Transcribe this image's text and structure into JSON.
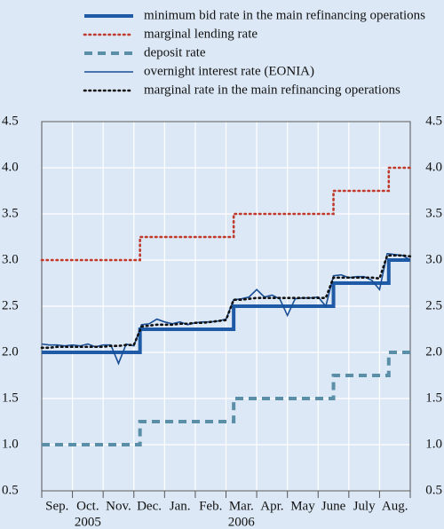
{
  "chart_data": {
    "type": "line",
    "categories": [
      "Sep.",
      "Oct.",
      "Nov.",
      "Dec.",
      "Jan.",
      "Feb.",
      "Mar.",
      "Apr.",
      "May",
      "June",
      "July",
      "Aug."
    ],
    "years": [
      "2005",
      "2006"
    ],
    "xlim": [
      0,
      12
    ],
    "ylim": [
      0.5,
      4.5
    ],
    "yticks": [
      0.5,
      {
        "value": 1.0,
        "label": "1.0"
      },
      1.5,
      {
        "value": 2.0,
        "label": "2.0"
      },
      2.5,
      {
        "value": 3.0,
        "label": "3.0"
      },
      3.5,
      {
        "value": 4.0,
        "label": "4.0"
      },
      4.5
    ],
    "grid": true,
    "x": [
      0,
      0.25,
      0.5,
      0.75,
      1,
      1.25,
      1.5,
      1.75,
      2,
      2.25,
      2.5,
      2.75,
      3,
      3.25,
      3.5,
      3.75,
      4,
      4.25,
      4.5,
      4.75,
      5,
      5.25,
      5.5,
      5.75,
      6,
      6.25,
      6.5,
      6.75,
      7,
      7.25,
      7.5,
      7.75,
      8,
      8.25,
      8.5,
      8.75,
      9,
      9.25,
      9.5,
      9.75,
      10,
      10.25,
      10.5,
      10.75,
      11,
      11.25,
      11.5,
      11.75,
      12
    ],
    "series": [
      {
        "name": "minimum bid rate in the main refinancing operations",
        "color": "#1f5aa6",
        "style": "thick",
        "step": true,
        "x": [
          0,
          3.2,
          6.25,
          9.5,
          11.3,
          12
        ],
        "values": [
          2.0,
          2.25,
          2.5,
          2.75,
          3.0,
          3.0
        ]
      },
      {
        "name": "marginal lending rate",
        "color": "#c0392b",
        "style": "dotted",
        "step": true,
        "x": [
          0,
          3.2,
          6.25,
          9.5,
          11.3,
          12
        ],
        "values": [
          3.0,
          3.25,
          3.5,
          3.75,
          4.0,
          4.0
        ]
      },
      {
        "name": "deposit rate",
        "color": "#5b8fa8",
        "style": "dashed",
        "step": true,
        "x": [
          0,
          3.2,
          6.25,
          9.5,
          11.3,
          12
        ],
        "values": [
          1.0,
          1.25,
          1.5,
          1.75,
          2.0,
          2.0
        ]
      },
      {
        "name": "overnight interest rate (EONIA)",
        "color": "#1a4e96",
        "style": "thin",
        "values": [
          2.09,
          2.08,
          2.08,
          2.07,
          2.08,
          2.07,
          2.09,
          2.06,
          2.08,
          2.08,
          1.88,
          2.09,
          2.07,
          2.3,
          2.31,
          2.36,
          2.33,
          2.31,
          2.33,
          2.3,
          2.32,
          2.33,
          2.33,
          2.34,
          2.36,
          2.57,
          2.58,
          2.6,
          2.68,
          2.6,
          2.62,
          2.58,
          2.4,
          2.58,
          2.59,
          2.59,
          2.6,
          2.5,
          2.83,
          2.84,
          2.81,
          2.82,
          2.82,
          2.78,
          2.68,
          3.07,
          3.06,
          3.05,
          3.0
        ]
      },
      {
        "name": "marginal rate in the main refinancing operations",
        "color": "#111111",
        "style": "dotted",
        "values": [
          2.05,
          2.05,
          2.06,
          2.06,
          2.06,
          2.06,
          2.06,
          2.06,
          2.06,
          2.07,
          2.07,
          2.08,
          2.08,
          2.28,
          2.29,
          2.3,
          2.3,
          2.3,
          2.31,
          2.31,
          2.32,
          2.32,
          2.33,
          2.34,
          2.35,
          2.57,
          2.57,
          2.58,
          2.59,
          2.59,
          2.59,
          2.59,
          2.59,
          2.59,
          2.59,
          2.59,
          2.59,
          2.59,
          2.81,
          2.81,
          2.81,
          2.81,
          2.81,
          2.81,
          2.8,
          3.05,
          3.05,
          3.05,
          3.04
        ]
      }
    ]
  }
}
